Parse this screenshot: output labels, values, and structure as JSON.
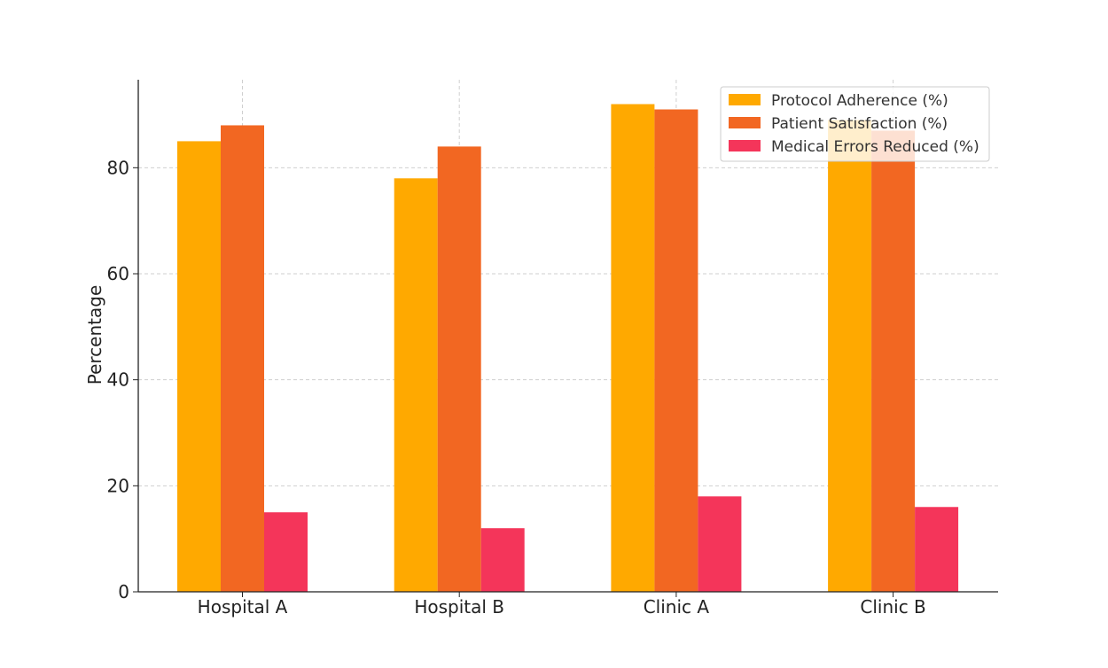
{
  "chart_data": {
    "type": "bar",
    "title": "",
    "xlabel": "",
    "ylabel": "Percentage",
    "categories": [
      "Hospital A",
      "Hospital B",
      "Clinic A",
      "Clinic B"
    ],
    "series": [
      {
        "name": "Protocol Adherence (%)",
        "color": "#FFA900",
        "values": [
          85,
          78,
          92,
          89
        ]
      },
      {
        "name": "Patient Satisfaction (%)",
        "color": "#F26722",
        "values": [
          88,
          84,
          91,
          87
        ]
      },
      {
        "name": "Medical Errors Reduced (%)",
        "color": "#F4355A",
        "values": [
          15,
          12,
          18,
          16
        ]
      }
    ],
    "ylim": [
      0,
      96.6
    ],
    "yticks": [
      0,
      20,
      40,
      60,
      80
    ],
    "grid": true,
    "legend_position": "top-right"
  }
}
